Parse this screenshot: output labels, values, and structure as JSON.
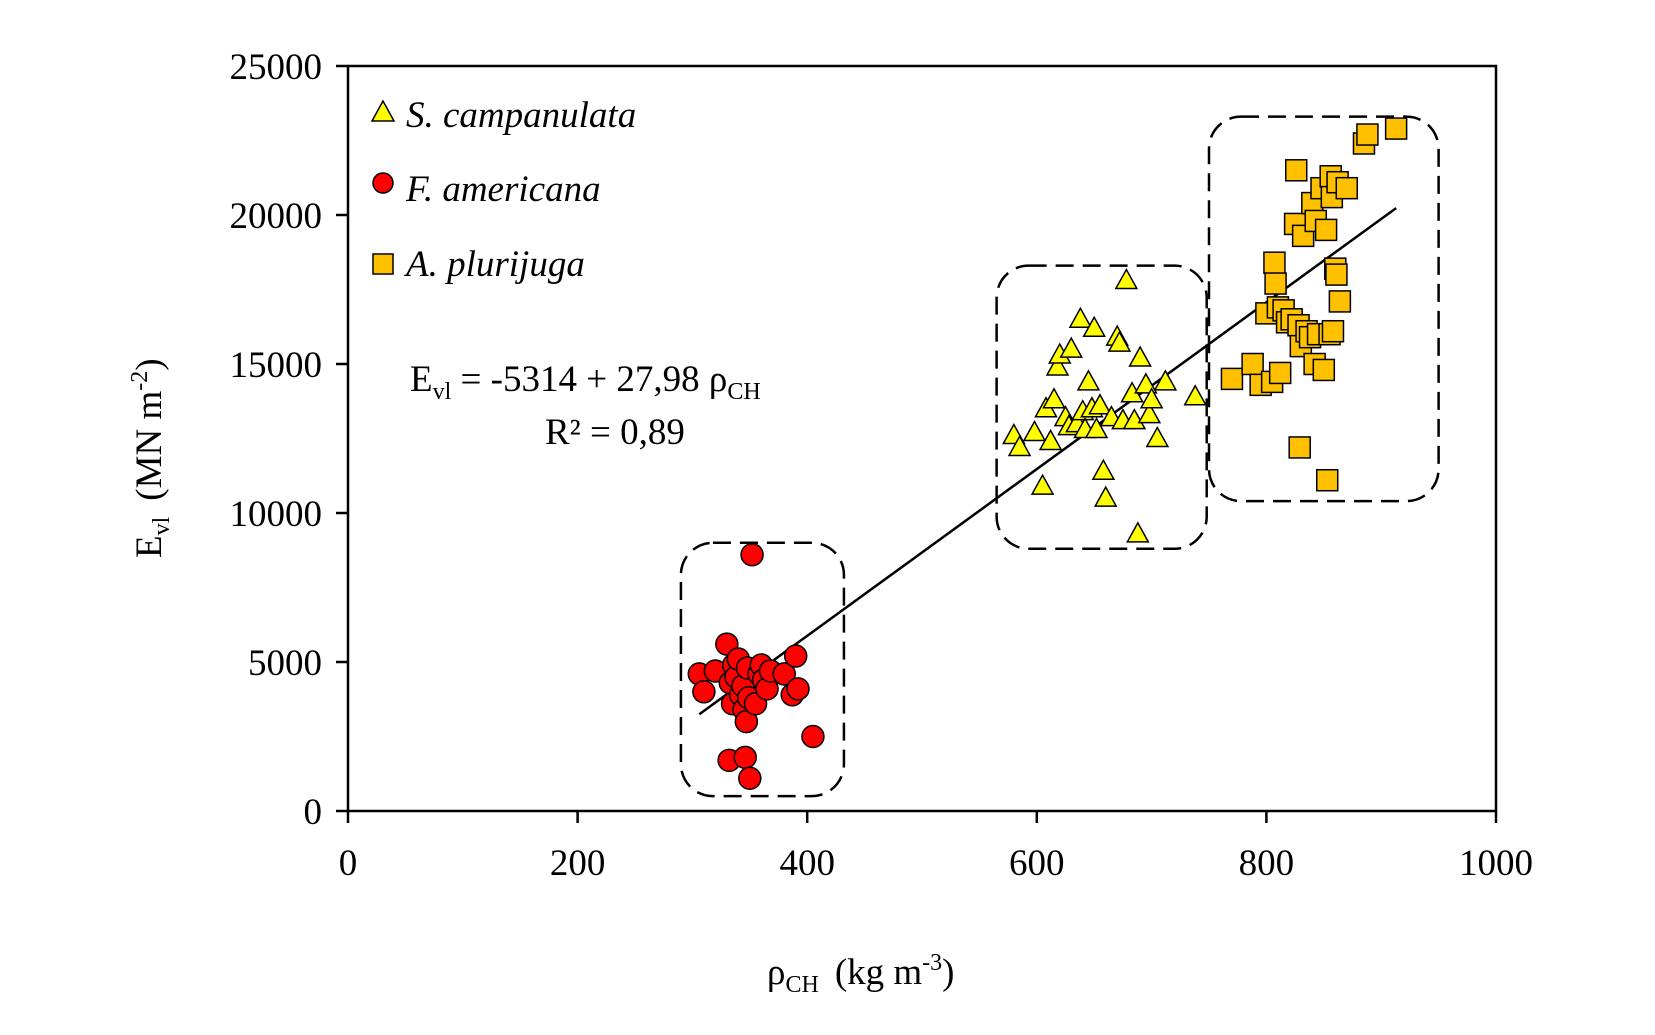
{
  "chart_data": {
    "type": "scatter",
    "title": "",
    "xlabel": {
      "main": "ρ",
      "sub": "CH",
      "unit": "(kg m",
      "sup": "-3",
      "close": ")"
    },
    "ylabel": {
      "main": "E",
      "sub": "vl",
      "unit": "(MN m",
      "sup": "-2",
      "close": ")"
    },
    "xlim": [
      0,
      1000
    ],
    "ylim": [
      0,
      25000
    ],
    "xticks": [
      0,
      200,
      400,
      600,
      800,
      1000
    ],
    "yticks": [
      0,
      5000,
      10000,
      15000,
      20000,
      25000
    ],
    "xtick_labels": [
      "0",
      "200",
      "400",
      "600",
      "800",
      "1000"
    ],
    "ytick_labels": [
      "0",
      "5000",
      "10000",
      "15000",
      "20000",
      "25000"
    ],
    "grid": false,
    "legend_position": "top-left",
    "series": [
      {
        "name": "S. campanulata",
        "marker": "triangle",
        "color": "#ffff00",
        "points": [
          [
            580,
            12600
          ],
          [
            585,
            12200
          ],
          [
            598,
            12700
          ],
          [
            605,
            10900
          ],
          [
            608,
            13500
          ],
          [
            612,
            12400
          ],
          [
            615,
            13800
          ],
          [
            618,
            14900
          ],
          [
            620,
            15300
          ],
          [
            625,
            13200
          ],
          [
            628,
            12900
          ],
          [
            630,
            15500
          ],
          [
            635,
            13000
          ],
          [
            638,
            16500
          ],
          [
            640,
            13400
          ],
          [
            642,
            12800
          ],
          [
            645,
            14400
          ],
          [
            648,
            13500
          ],
          [
            650,
            16200
          ],
          [
            652,
            12800
          ],
          [
            655,
            13600
          ],
          [
            658,
            11400
          ],
          [
            660,
            10500
          ],
          [
            665,
            13200
          ],
          [
            670,
            15900
          ],
          [
            672,
            15700
          ],
          [
            675,
            13100
          ],
          [
            678,
            17800
          ],
          [
            683,
            14000
          ],
          [
            685,
            13100
          ],
          [
            688,
            9300
          ],
          [
            690,
            15200
          ],
          [
            695,
            14300
          ],
          [
            698,
            13300
          ],
          [
            700,
            13800
          ],
          [
            705,
            12500
          ],
          [
            712,
            14400
          ],
          [
            738,
            13900
          ]
        ]
      },
      {
        "name": "F. americana",
        "marker": "circle",
        "color": "#ff0000",
        "points": [
          [
            306,
            4600
          ],
          [
            310,
            4000
          ],
          [
            320,
            4700
          ],
          [
            330,
            5600
          ],
          [
            332,
            1700
          ],
          [
            333,
            4300
          ],
          [
            335,
            3600
          ],
          [
            336,
            4900
          ],
          [
            338,
            4500
          ],
          [
            340,
            5100
          ],
          [
            342,
            3900
          ],
          [
            344,
            4200
          ],
          [
            345,
            3400
          ],
          [
            346,
            1800
          ],
          [
            347,
            3000
          ],
          [
            348,
            4800
          ],
          [
            349,
            3800
          ],
          [
            350,
            1100
          ],
          [
            352,
            8600
          ],
          [
            355,
            3600
          ],
          [
            358,
            4600
          ],
          [
            360,
            4900
          ],
          [
            362,
            4400
          ],
          [
            365,
            4100
          ],
          [
            368,
            4700
          ],
          [
            380,
            4600
          ],
          [
            387,
            3900
          ],
          [
            390,
            5200
          ],
          [
            392,
            4100
          ],
          [
            405,
            2500
          ]
        ]
      },
      {
        "name": "A. plurijuga",
        "marker": "square",
        "color": "#ffc000",
        "points": [
          [
            770,
            14500
          ],
          [
            788,
            15000
          ],
          [
            795,
            14300
          ],
          [
            800,
            16700
          ],
          [
            805,
            14400
          ],
          [
            807,
            18400
          ],
          [
            808,
            17700
          ],
          [
            810,
            16900
          ],
          [
            812,
            14700
          ],
          [
            815,
            16800
          ],
          [
            818,
            16400
          ],
          [
            822,
            16500
          ],
          [
            825,
            19700
          ],
          [
            826,
            21500
          ],
          [
            828,
            16300
          ],
          [
            829,
            12200
          ],
          [
            830,
            15600
          ],
          [
            832,
            19300
          ],
          [
            835,
            16100
          ],
          [
            838,
            15900
          ],
          [
            840,
            20400
          ],
          [
            842,
            15000
          ],
          [
            843,
            19800
          ],
          [
            845,
            16000
          ],
          [
            848,
            20900
          ],
          [
            850,
            14800
          ],
          [
            852,
            19500
          ],
          [
            853,
            11100
          ],
          [
            855,
            16000
          ],
          [
            856,
            21300
          ],
          [
            857,
            20600
          ],
          [
            858,
            16100
          ],
          [
            860,
            18200
          ],
          [
            861,
            18000
          ],
          [
            862,
            21100
          ],
          [
            864,
            17100
          ],
          [
            870,
            20900
          ],
          [
            885,
            22400
          ],
          [
            888,
            22700
          ],
          [
            913,
            22900
          ]
        ]
      }
    ],
    "regression": {
      "intercept": -5314,
      "slope": 27.98,
      "x_range": [
        306,
        913
      ],
      "equation_lhs": "E",
      "equation_lhs_sub": "vl",
      "equation_mid": " = -5314 + 27,98 ρ",
      "equation_mid_sub": "CH",
      "r2_label": "R² = 0,89"
    },
    "cluster_boxes": [
      {
        "group": "F. americana",
        "x_range": [
          290,
          432
        ],
        "y_range": [
          500,
          9000
        ]
      },
      {
        "group": "S. campanulata",
        "x_range": [
          565,
          748
        ],
        "y_range": [
          8800,
          18300
        ]
      },
      {
        "group": "A. plurijuga",
        "x_range": [
          750,
          950
        ],
        "y_range": [
          10400,
          23300
        ]
      }
    ]
  }
}
